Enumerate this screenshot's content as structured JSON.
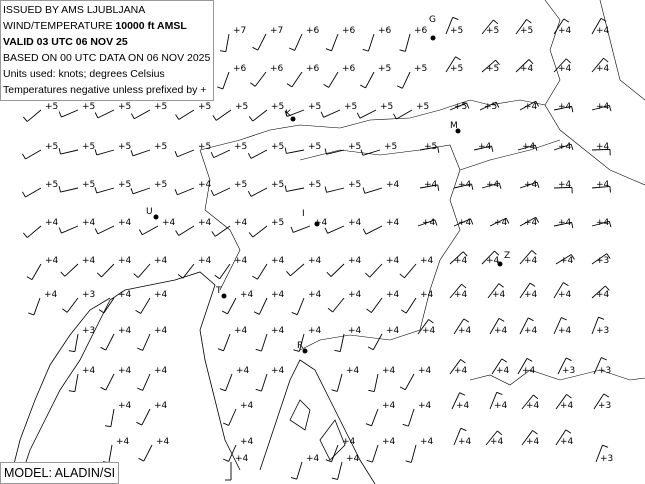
{
  "header": {
    "issued": "ISSUED BY AMS LJUBLJANA",
    "product_prefix": "WIND/TEMPERATURE",
    "level": "10000 ft AMSL",
    "valid": "VALID 03 UTC 06 NOV 25",
    "based_on": "BASED ON 00 UTC DATA ON 06 NOV 2025",
    "units": "Units used: knots; degrees Celsius",
    "note": "Temperatures negative unless prefixed by +"
  },
  "model_label": "MODEL: ALADIN/SI",
  "colors": {
    "barb": "#000000",
    "coast": "#000000",
    "background": "#ffffff"
  },
  "cities": [
    {
      "label": "G"
    },
    {
      "label": "K"
    },
    {
      "label": "M"
    },
    {
      "label": "U"
    },
    {
      "label": "I"
    },
    {
      "label": "Z"
    },
    {
      "label": "T"
    },
    {
      "label": "R"
    }
  ],
  "rows": [
    {
      "temps": [
        "+7",
        "+7",
        "+6",
        "+6",
        "+6",
        "+6",
        "+5",
        "+5",
        "+5",
        "+4",
        "+4"
      ],
      "wind_dir_deg": 200,
      "wind_kt": 10
    },
    {
      "temps": [
        "+6",
        "+6",
        "+6",
        "+6",
        "+5",
        "+5",
        "+5",
        "+5",
        "+4",
        "+4",
        "+4"
      ],
      "wind_dir_deg": 210,
      "wind_kt": 10
    },
    {
      "temps": [
        "+5",
        "+5",
        "+5",
        "+5",
        "+5",
        "+5",
        "+5",
        "+5",
        "+5",
        "+5",
        "+5",
        "+5",
        "+5",
        "+4",
        "+4",
        "+4"
      ],
      "wind_dir_deg": 240,
      "wind_kt": 10
    },
    {
      "temps": [
        "+5",
        "+5",
        "+5",
        "+5",
        "+5",
        "+5",
        "+5",
        "+5",
        "+5",
        "+5",
        "+5",
        "+4",
        "+4",
        "+4",
        "+4"
      ],
      "wind_dir_deg": 250,
      "wind_kt": 10
    },
    {
      "temps": [
        "+5",
        "+5",
        "+5",
        "+5",
        "+4",
        "+5",
        "+5",
        "+5",
        "+5",
        "+4",
        "+4",
        "+4",
        "+4",
        "+4",
        "+4",
        "+4"
      ],
      "wind_dir_deg": 250,
      "wind_kt": 10
    },
    {
      "temps": [
        "+4",
        "+4",
        "+4",
        "+4",
        "+4",
        "+4",
        "+5",
        "+4",
        "+4",
        "+4",
        "+4",
        "+4",
        "+4",
        "+4",
        "+4",
        "+4"
      ],
      "wind_dir_deg": 240,
      "wind_kt": 10
    },
    {
      "temps": [
        "+4",
        "+4",
        "+4",
        "+4",
        "+4",
        "+4",
        "+4",
        "+4",
        "+4",
        "+4",
        "+4",
        "+4",
        "+4",
        "+4",
        "+4",
        "+3"
      ],
      "wind_dir_deg": 220,
      "wind_kt": 10
    },
    {
      "temps": [
        "+4",
        "+3",
        "+4",
        "+4",
        "+4",
        "+4",
        "+4",
        "+4",
        "+4",
        "+4",
        "+4",
        "+4",
        "+4",
        "+4",
        "+4"
      ],
      "wind_dir_deg": 210,
      "wind_kt": 10
    },
    {
      "temps": [
        "+3",
        "+4",
        "+4",
        "+4",
        "+4",
        "+4",
        "+4",
        "+4",
        "+4",
        "+4",
        "+4",
        "+4",
        "+4",
        "+3"
      ],
      "wind_dir_deg": 200,
      "wind_kt": 10
    },
    {
      "temps": [
        "+4",
        "+4",
        "+4",
        "+4",
        "+4",
        "+4",
        "+4",
        "+4",
        "+4",
        "+4",
        "+4",
        "+3",
        "+3"
      ],
      "wind_dir_deg": 200,
      "wind_kt": 10
    },
    {
      "temps": [
        "+4",
        "+4",
        "+4",
        "+4",
        "+4",
        "+4",
        "+4",
        "+4",
        "+4",
        "+3"
      ],
      "wind_dir_deg": 200,
      "wind_kt": 10
    },
    {
      "temps": [
        "+4",
        "+4",
        "+4",
        "+4",
        "+4",
        "+4",
        "+4",
        "+4",
        "+4",
        "+4"
      ],
      "wind_dir_deg": 200,
      "wind_kt": 10
    },
    {
      "temps": [
        "+4",
        "+4",
        "+4",
        "+3"
      ],
      "wind_dir_deg": 190,
      "wind_kt": 10
    }
  ]
}
